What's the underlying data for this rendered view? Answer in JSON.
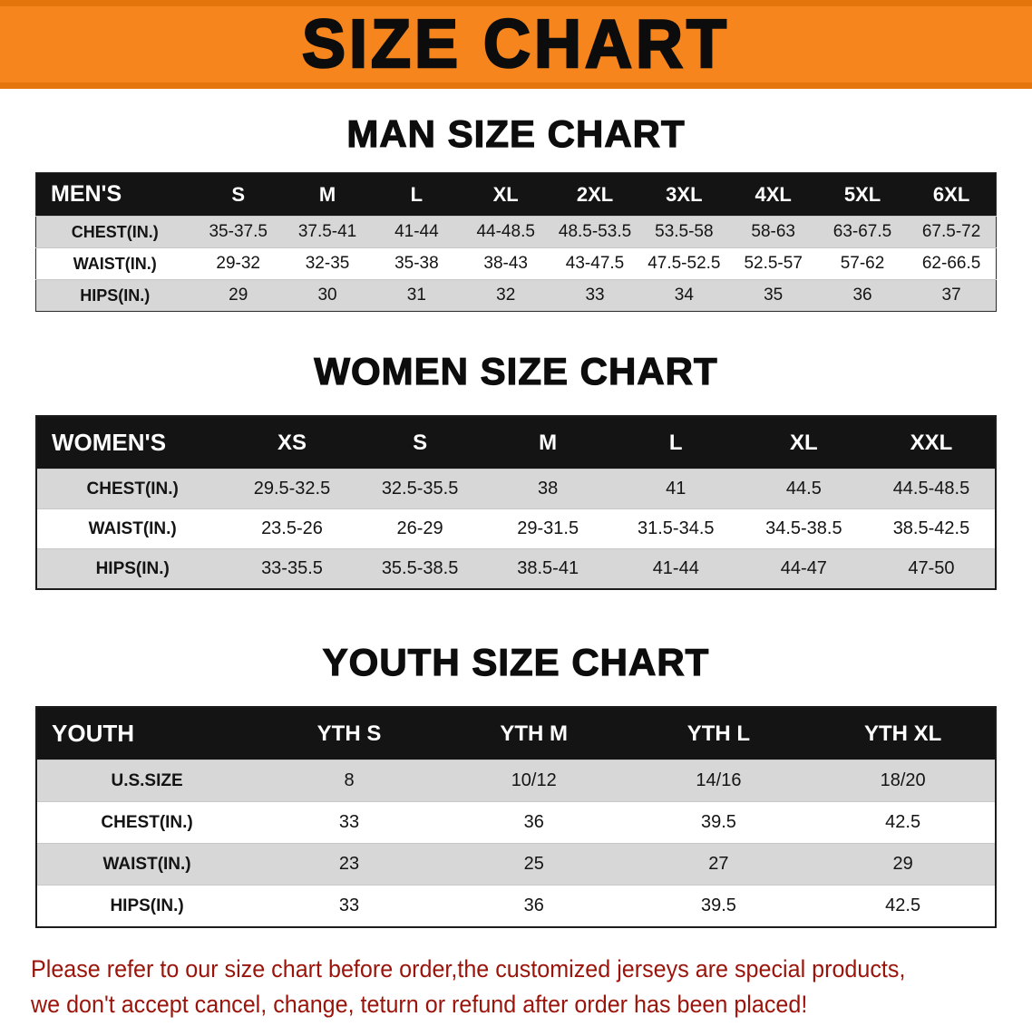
{
  "banner_title": "SIZE CHART",
  "colors": {
    "banner_bg": "#f6851d",
    "banner_border": "#e4750d",
    "table_header_bg": "#141414",
    "row_stripe": "#d7d7d7",
    "footer_text": "#9b140b"
  },
  "chart_data": [
    {
      "type": "table",
      "title": "MAN SIZE CHART",
      "columns": [
        "MEN'S",
        "S",
        "M",
        "L",
        "XL",
        "2XL",
        "3XL",
        "4XL",
        "5XL",
        "6XL"
      ],
      "rows": [
        [
          "CHEST(IN.)",
          "35-37.5",
          "37.5-41",
          "41-44",
          "44-48.5",
          "48.5-53.5",
          "53.5-58",
          "58-63",
          "63-67.5",
          "67.5-72"
        ],
        [
          "WAIST(IN.)",
          "29-32",
          "32-35",
          "35-38",
          "38-43",
          "43-47.5",
          "47.5-52.5",
          "52.5-57",
          "57-62",
          "62-66.5"
        ],
        [
          "HIPS(IN.)",
          "29",
          "30",
          "31",
          "32",
          "33",
          "34",
          "35",
          "36",
          "37"
        ]
      ]
    },
    {
      "type": "table",
      "title": "WOMEN SIZE CHART",
      "columns": [
        "WOMEN'S",
        "XS",
        "S",
        "M",
        "L",
        "XL",
        "XXL"
      ],
      "rows": [
        [
          "CHEST(IN.)",
          "29.5-32.5",
          "32.5-35.5",
          "38",
          "41",
          "44.5",
          "44.5-48.5"
        ],
        [
          "WAIST(IN.)",
          "23.5-26",
          "26-29",
          "29-31.5",
          "31.5-34.5",
          "34.5-38.5",
          "38.5-42.5"
        ],
        [
          "HIPS(IN.)",
          "33-35.5",
          "35.5-38.5",
          "38.5-41",
          "41-44",
          "44-47",
          "47-50"
        ]
      ]
    },
    {
      "type": "table",
      "title": "YOUTH SIZE CHART",
      "columns": [
        "YOUTH",
        "YTH S",
        "YTH M",
        "YTH L",
        "YTH XL"
      ],
      "rows": [
        [
          "U.S.SIZE",
          "8",
          "10/12",
          "14/16",
          "18/20"
        ],
        [
          "CHEST(IN.)",
          "33",
          "36",
          "39.5",
          "42.5"
        ],
        [
          "WAIST(IN.)",
          "23",
          "25",
          "27",
          "29"
        ],
        [
          "HIPS(IN.)",
          "33",
          "36",
          "39.5",
          "42.5"
        ]
      ]
    }
  ],
  "footer": {
    "line1": "Please refer to our size chart before order,the customized jerseys are special products,",
    "line2": "we don't accept cancel, change, teturn or refund after order has been placed!"
  }
}
